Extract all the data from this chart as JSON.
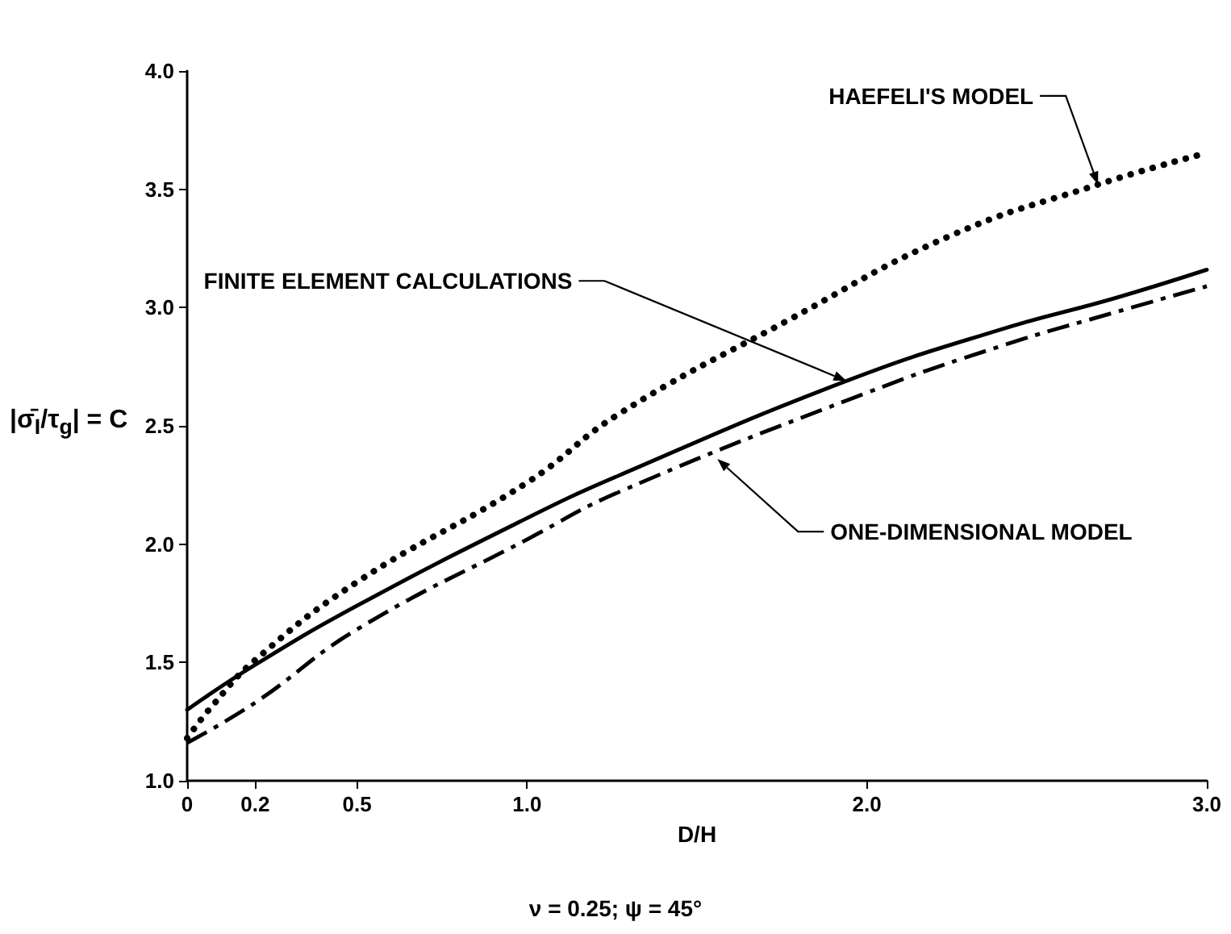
{
  "chart_data": {
    "type": "line",
    "xlabel": "D/H",
    "ylabel": "|σ̄$_{I}$/τ$_{g}$| = C",
    "annotations": [
      {
        "text": "HAEFELI'S MODEL",
        "x": 2.68,
        "y": 3.52
      },
      {
        "text": "FINITE ELEMENT CALCULATIONS",
        "x": 1.94,
        "y": 2.69
      },
      {
        "text": "ONE-DIMENSIONAL MODEL",
        "x": 1.56,
        "y": 2.36
      },
      "ν = 0.25; ψ = 45°"
    ],
    "series": [
      {
        "color": "#000000",
        "line_style": "dotted",
        "x": [
          0,
          0.07,
          0.2,
          0.5,
          1.0,
          1.27,
          1.76,
          2.24,
          2.68,
          2.99
        ],
        "values": [
          1.18,
          1.31,
          1.51,
          1.84,
          2.26,
          2.55,
          2.94,
          3.3,
          3.52,
          3.65
        ]
      },
      {
        "color": "#000000",
        "line_style": "solid",
        "x": [
          0,
          0.2,
          0.5,
          1.0,
          1.27,
          1.94,
          2.4,
          2.73,
          3.0
        ],
        "values": [
          1.3,
          1.49,
          1.74,
          2.11,
          2.29,
          2.69,
          2.91,
          3.04,
          3.16
        ]
      },
      {
        "color": "#000000",
        "line_style": "dashed",
        "x": [
          0,
          0.2,
          0.5,
          1.0,
          1.27,
          2.0,
          2.4,
          2.73,
          3.0
        ],
        "values": [
          1.16,
          1.33,
          1.64,
          2.02,
          2.22,
          2.64,
          2.84,
          2.98,
          3.09
        ]
      }
    ],
    "xlim": [
      0,
      3
    ],
    "xticks": [
      0,
      0.2,
      0.5,
      {
        "value": 1,
        "label": "1.0"
      },
      {
        "value": 2,
        "label": "2.0"
      },
      {
        "value": 3,
        "label": "3.0"
      }
    ],
    "ylim": [
      1,
      4
    ],
    "yticks": [
      {
        "value": 1,
        "label": "1.0"
      },
      1.5,
      {
        "value": 2,
        "label": "2.0"
      },
      2.5,
      {
        "value": 3,
        "label": "3.0"
      },
      3.5,
      {
        "value": 4,
        "label": "4.0"
      }
    ],
    "grid": false,
    "marker": "none"
  }
}
